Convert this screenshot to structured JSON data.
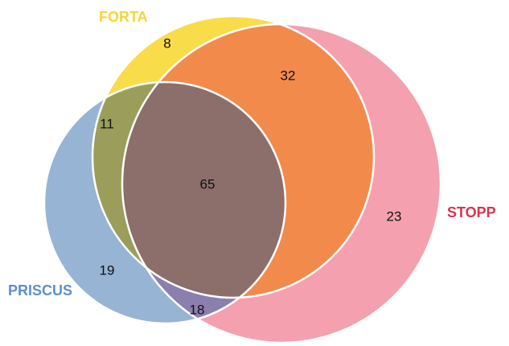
{
  "chart_data": {
    "type": "venn",
    "sets": [
      {
        "name": "FORTA",
        "color": "#f9dc4a"
      },
      {
        "name": "STOPP",
        "color": "#f4a0ae"
      },
      {
        "name": "PRISCUS",
        "color": "#97b4d4"
      }
    ],
    "region_colors": {
      "FORTA+STOPP": "#f28a4c",
      "FORTA+PRISCUS": "#9b9e5a",
      "STOPP+PRISCUS": "#8b7fae",
      "ALL": "#8c6e6a"
    },
    "regions": [
      {
        "sets": [
          "FORTA"
        ],
        "value": 8
      },
      {
        "sets": [
          "FORTA",
          "STOPP"
        ],
        "value": 32
      },
      {
        "sets": [
          "FORTA",
          "PRISCUS"
        ],
        "value": 11
      },
      {
        "sets": [
          "FORTA",
          "STOPP",
          "PRISCUS"
        ],
        "value": 65
      },
      {
        "sets": [
          "STOPP"
        ],
        "value": 23
      },
      {
        "sets": [
          "PRISCUS"
        ],
        "value": 19
      },
      {
        "sets": [
          "STOPP",
          "PRISCUS"
        ],
        "value": 18
      }
    ]
  }
}
